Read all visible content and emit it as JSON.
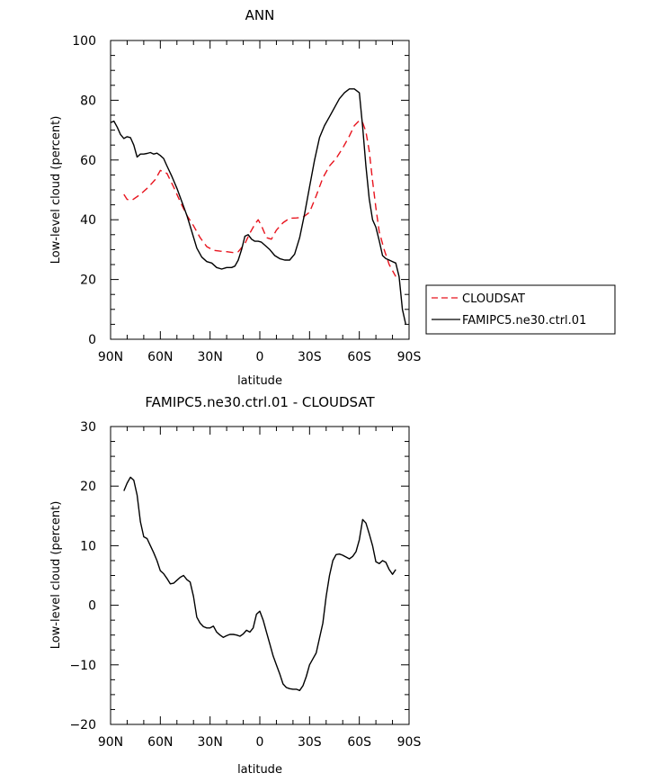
{
  "chart_data": [
    {
      "type": "line",
      "title": "ANN",
      "xlabel": "latitude",
      "ylabel": "Low-level cloud (percent)",
      "xlim": [
        90,
        -90
      ],
      "ylim": [
        0,
        100
      ],
      "xticks": [
        90,
        60,
        30,
        0,
        -30,
        -60,
        -90
      ],
      "xtick_labels": [
        "90N",
        "60N",
        "30N",
        "0",
        "30S",
        "60S",
        "90S"
      ],
      "yticks": [
        0,
        20,
        40,
        60,
        80,
        100
      ],
      "ytick_labels": [
        "0",
        "20",
        "40",
        "60",
        "80",
        "100"
      ],
      "legend": {
        "placement": "right",
        "entries": [
          "CLOUDSAT",
          "FAMIPC5.ne30.ctrl.01"
        ]
      },
      "series": [
        {
          "name": "CLOUDSAT",
          "color": "#e8141e",
          "dash": true,
          "x": [
            82,
            80,
            77,
            72,
            67,
            63,
            60,
            56,
            52,
            48,
            44,
            40,
            36,
            32,
            28,
            24,
            20,
            16,
            13,
            9,
            6,
            3,
            1,
            -1,
            -4,
            -7,
            -10,
            -14,
            -18,
            -22,
            -26,
            -30,
            -34,
            -38,
            -42,
            -46,
            -50,
            -54,
            -57,
            -60,
            -62,
            -64,
            -66,
            -68,
            -70,
            -72,
            -75,
            -78,
            -82
          ],
          "y": [
            48.5,
            46.8,
            46.6,
            48.5,
            51,
            53.5,
            56.5,
            55.5,
            51,
            46,
            41.5,
            38,
            34,
            31,
            29.8,
            29.5,
            29.3,
            29,
            29.3,
            32,
            35.5,
            38.5,
            40,
            38,
            34,
            33.5,
            36.5,
            39,
            40.5,
            40.6,
            40.8,
            42.5,
            48,
            54,
            58,
            60.5,
            64,
            68,
            71.5,
            73.2,
            72.5,
            69.5,
            63,
            53,
            44,
            36,
            30,
            25,
            21
          ]
        },
        {
          "name": "FAMIPC5.ne30.ctrl.01",
          "color": "#000000",
          "dash": false,
          "x": [
            90,
            88,
            86,
            84,
            82,
            80,
            78,
            76,
            74,
            72,
            70,
            68,
            66,
            64,
            62,
            60,
            58,
            56,
            53,
            50,
            47,
            44,
            41,
            38,
            35,
            32,
            29,
            26,
            23,
            20,
            17,
            15,
            13,
            11,
            9,
            7,
            5,
            3,
            1,
            -1,
            -3,
            -6,
            -9,
            -12,
            -15,
            -18,
            -21,
            -24,
            -27,
            -30,
            -33,
            -36,
            -39,
            -42,
            -45,
            -48,
            -51,
            -54,
            -57,
            -60,
            -62,
            -64,
            -66,
            -68,
            -70,
            -72,
            -74,
            -76,
            -78,
            -80,
            -82,
            -84,
            -86,
            -88
          ],
          "y": [
            72.5,
            73,
            71,
            68.5,
            67.2,
            67.8,
            67.5,
            65,
            61,
            62,
            62,
            62.2,
            62.5,
            62,
            62.3,
            61.5,
            60.5,
            58,
            54.5,
            50.5,
            46,
            41.5,
            36,
            30.5,
            27.5,
            26,
            25.5,
            24,
            23.5,
            24,
            24,
            24.5,
            26.5,
            30,
            34.5,
            35,
            33.5,
            32.8,
            32.8,
            32.5,
            31.5,
            30,
            28,
            27,
            26.5,
            26.5,
            28.5,
            34,
            42,
            51,
            60,
            67.5,
            71.5,
            74.5,
            77.5,
            80.5,
            82.5,
            83.8,
            83.8,
            82.5,
            71,
            58,
            47,
            40,
            37.5,
            33,
            28,
            27,
            26.5,
            26,
            25.5,
            21,
            10,
            5
          ]
        }
      ]
    },
    {
      "type": "line",
      "title": "FAMIPC5.ne30.ctrl.01 - CLOUDSAT",
      "xlabel": "latitude",
      "ylabel": "Low-level cloud (percent)",
      "xlim": [
        90,
        -90
      ],
      "ylim": [
        -20,
        30
      ],
      "xticks": [
        90,
        60,
        30,
        0,
        -30,
        -60,
        -90
      ],
      "xtick_labels": [
        "90N",
        "60N",
        "30N",
        "0",
        "30S",
        "60S",
        "90S"
      ],
      "yticks": [
        -20,
        -10,
        0,
        10,
        20,
        30
      ],
      "ytick_labels": [
        "-20",
        "-10",
        "0",
        "10",
        "20",
        "30"
      ],
      "series": [
        {
          "color": "#000000",
          "dash": false,
          "x": [
            82,
            80,
            78,
            76,
            74,
            72,
            70,
            68,
            66,
            64,
            62,
            60,
            58,
            56,
            54,
            52,
            50,
            48,
            46,
            44,
            42,
            40,
            38,
            36,
            34,
            32,
            30,
            28,
            26,
            24,
            22,
            20,
            18,
            16,
            14,
            12,
            10,
            8,
            6,
            4,
            2,
            0,
            -2,
            -4,
            -6,
            -8,
            -10,
            -12,
            -14,
            -16,
            -18,
            -20,
            -22,
            -24,
            -26,
            -28,
            -30,
            -32,
            -34,
            -36,
            -38,
            -40,
            -42,
            -44,
            -46,
            -48,
            -50,
            -52,
            -54,
            -56,
            -58,
            -60,
            -62,
            -64,
            -66,
            -68,
            -70,
            -72,
            -74,
            -76,
            -78,
            -80,
            -82
          ],
          "y": [
            19.2,
            20.5,
            21.5,
            21,
            18.5,
            14,
            11.5,
            11.2,
            10,
            8.8,
            7.5,
            5.8,
            5.3,
            4.5,
            3.6,
            3.7,
            4.2,
            4.7,
            5,
            4.3,
            3.9,
            1.5,
            -2,
            -3,
            -3.6,
            -3.8,
            -3.8,
            -3.5,
            -4.5,
            -5,
            -5.4,
            -5.1,
            -4.9,
            -4.9,
            -5,
            -5.2,
            -4.8,
            -4.2,
            -4.5,
            -3.8,
            -1.5,
            -1,
            -2.5,
            -4.5,
            -6.5,
            -8.5,
            -10,
            -11.5,
            -13.2,
            -13.8,
            -14,
            -14.1,
            -14.1,
            -14.3,
            -13.5,
            -12,
            -10,
            -9,
            -8,
            -5.5,
            -3,
            1.5,
            5,
            7.5,
            8.5,
            8.6,
            8.4,
            8.1,
            7.8,
            8.2,
            9,
            11,
            14.4,
            13.8,
            12,
            10,
            7.3,
            7,
            7.5,
            7.2,
            6,
            5.2,
            6
          ]
        }
      ]
    }
  ]
}
